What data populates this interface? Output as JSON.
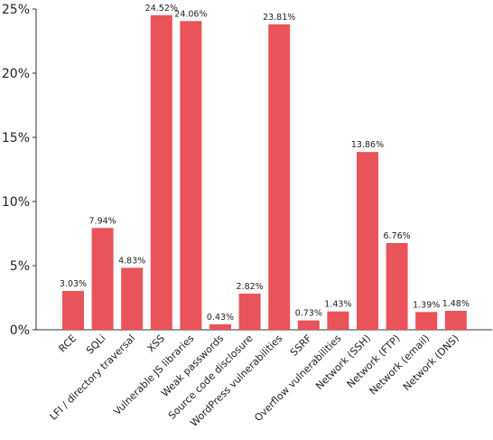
{
  "chart_data": {
    "type": "bar",
    "title": "",
    "xlabel": "",
    "ylabel": "",
    "ylim": [
      0,
      25
    ],
    "yticks": [
      "0%",
      "5%",
      "10%",
      "15%",
      "20%",
      "25%"
    ],
    "ytick_values": [
      0,
      5,
      10,
      15,
      20,
      25
    ],
    "grid": false,
    "legend": "none",
    "bar_color": "#e8545a",
    "axis_color": "#333333",
    "categories": [
      "RCE",
      "SQLi",
      "LFI / directory traversal",
      "XSS",
      "Vulnerable JS libraries",
      "Weak passwords",
      "Source code disclosure",
      "WordPress vulnerabilities",
      "SSRF",
      "Overflow vulnerabilities",
      "Network (SSH)",
      "Network (FTP)",
      "Network (email)",
      "Network (DNS)"
    ],
    "values": [
      3.03,
      7.94,
      4.83,
      24.52,
      24.06,
      0.43,
      2.82,
      23.81,
      0.73,
      1.43,
      13.86,
      6.76,
      1.39,
      1.48
    ],
    "data_labels": [
      "3.03%",
      "7.94%",
      "4.83%",
      "24.52%",
      "24.06%",
      "0.43%",
      "2.82%",
      "23.81%",
      "0.73%",
      "1.43%",
      "13.86%",
      "6.76%",
      "1.39%",
      "1.48%"
    ]
  }
}
